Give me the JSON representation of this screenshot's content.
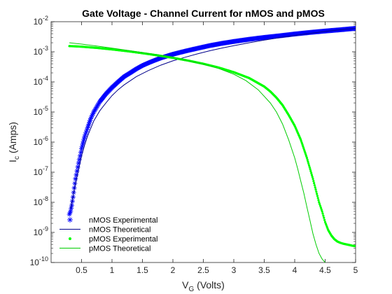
{
  "chart_data": {
    "type": "line",
    "title": "Gate Voltage - Channel Current for nMOS and pMOS",
    "xlabel": "V",
    "xlabel_sub": "G",
    "xlabel_rest": " (Volts)",
    "ylabel": "I",
    "ylabel_sub": "c",
    "ylabel_rest": " (Amps)",
    "xlim": [
      0,
      5
    ],
    "ylim": [
      1e-10,
      0.01
    ],
    "yscale": "log",
    "grid": false,
    "legend_position": "bottom-left",
    "x_ticks": [
      0.5,
      1,
      1.5,
      2,
      2.5,
      3,
      3.5,
      4,
      4.5,
      5
    ],
    "x_tick_labels": [
      "0.5",
      "1",
      "1.5",
      "2",
      "2.5",
      "3",
      "3.5",
      "4",
      "4.5",
      "5"
    ],
    "y_tick_exponents": [
      -10,
      -9,
      -8,
      -7,
      -6,
      -5,
      -4,
      -3,
      -2
    ],
    "y_tick_base": "10",
    "series": [
      {
        "name": "nMOS Experimental",
        "color": "#0000ff",
        "marker": "asterisk",
        "x": [
          0.3,
          0.32,
          0.34,
          0.36,
          0.38,
          0.4,
          0.45,
          0.5,
          0.55,
          0.6,
          0.65,
          0.7,
          0.8,
          0.9,
          1.0,
          1.1,
          1.2,
          1.3,
          1.4,
          1.5,
          1.6,
          1.7,
          1.8,
          1.9,
          2.0,
          2.2,
          2.4,
          2.6,
          2.8,
          3.0,
          3.25,
          3.5,
          3.75,
          4.0,
          4.25,
          4.5,
          4.75,
          5.0
        ],
        "y": [
          4e-09,
          5e-09,
          8e-09,
          1.5e-08,
          3e-08,
          6e-08,
          2e-07,
          6e-07,
          1.5e-06,
          3e-06,
          6e-06,
          1e-05,
          2.2e-05,
          4e-05,
          6.5e-05,
          0.0001,
          0.00015,
          0.0002,
          0.00027,
          0.00035,
          0.00043,
          0.00052,
          0.00062,
          0.00072,
          0.00083,
          0.00105,
          0.0013,
          0.0016,
          0.0019,
          0.0022,
          0.0026,
          0.003,
          0.0034,
          0.0039,
          0.0044,
          0.0049,
          0.0054,
          0.006
        ]
      },
      {
        "name": "nMOS Theoretical",
        "color": "#00008b",
        "marker": "none",
        "x": [
          0.32,
          0.35,
          0.4,
          0.45,
          0.5,
          0.55,
          0.6,
          0.7,
          0.8,
          0.9,
          1.0,
          1.1,
          1.2,
          1.4,
          1.6,
          1.8,
          2.0,
          2.2,
          2.4,
          2.6,
          2.8,
          3.0,
          3.25,
          3.5,
          3.75,
          4.0,
          4.25,
          4.5,
          4.75,
          5.0
        ],
        "y": [
          6e-09,
          1.2e-08,
          4e-08,
          1.2e-07,
          3.5e-07,
          8e-07,
          1.6e-06,
          5e-06,
          1.1e-05,
          2e-05,
          3.5e-05,
          5.5e-05,
          8e-05,
          0.00015,
          0.00024,
          0.00036,
          0.0005,
          0.00066,
          0.00085,
          0.00108,
          0.00133,
          0.0016,
          0.002,
          0.00245,
          0.00295,
          0.0035,
          0.0041,
          0.00475,
          0.0054,
          0.006
        ]
      },
      {
        "name": "pMOS Experimental",
        "color": "#00ff00",
        "marker": "dot",
        "x": [
          0.3,
          0.4,
          0.5,
          0.75,
          1.0,
          1.25,
          1.5,
          1.75,
          2.0,
          2.25,
          2.5,
          2.75,
          3.0,
          3.25,
          3.5,
          3.6,
          3.7,
          3.8,
          3.9,
          4.0,
          4.1,
          4.2,
          4.3,
          4.4,
          4.45,
          4.5,
          4.55,
          4.6,
          4.65,
          4.7,
          4.75,
          4.8,
          4.85,
          4.9,
          4.95,
          5.0
        ],
        "y": [
          0.00155,
          0.00152,
          0.00148,
          0.00135,
          0.0012,
          0.00105,
          0.0009,
          0.00076,
          0.00063,
          0.00051,
          0.0004,
          0.0003,
          0.00021,
          0.000135,
          7e-05,
          4.8e-05,
          3e-05,
          1.7e-05,
          8e-06,
          3.5e-06,
          1.2e-06,
          3e-07,
          6e-08,
          1e-08,
          5e-09,
          2.2e-09,
          1.2e-09,
          8e-10,
          6e-10,
          5e-10,
          4.5e-10,
          4.2e-10,
          4e-10,
          3.8e-10,
          3.6e-10,
          3.5e-10
        ]
      },
      {
        "name": "pMOS Theoretical",
        "color": "#00cc00",
        "marker": "none",
        "x": [
          0.3,
          0.5,
          0.75,
          1.0,
          1.25,
          1.5,
          1.75,
          2.0,
          2.25,
          2.5,
          2.75,
          3.0,
          3.2,
          3.4,
          3.6,
          3.7,
          3.8,
          3.9,
          4.0,
          4.05,
          4.1,
          4.15,
          4.2,
          4.25,
          4.3,
          4.35,
          4.4,
          4.45,
          4.5
        ],
        "y": [
          0.002,
          0.0018,
          0.00155,
          0.00132,
          0.00112,
          0.00094,
          0.00078,
          0.00064,
          0.00051,
          0.00039,
          0.00028,
          0.00018,
          0.00011,
          5.5e-05,
          2e-05,
          1e-05,
          4e-06,
          1.2e-06,
          3e-07,
          1.3e-07,
          5e-08,
          2e-08,
          7e-09,
          2.5e-09,
          9e-10,
          4e-10,
          2e-10,
          1.3e-10,
          1e-10
        ]
      }
    ]
  }
}
